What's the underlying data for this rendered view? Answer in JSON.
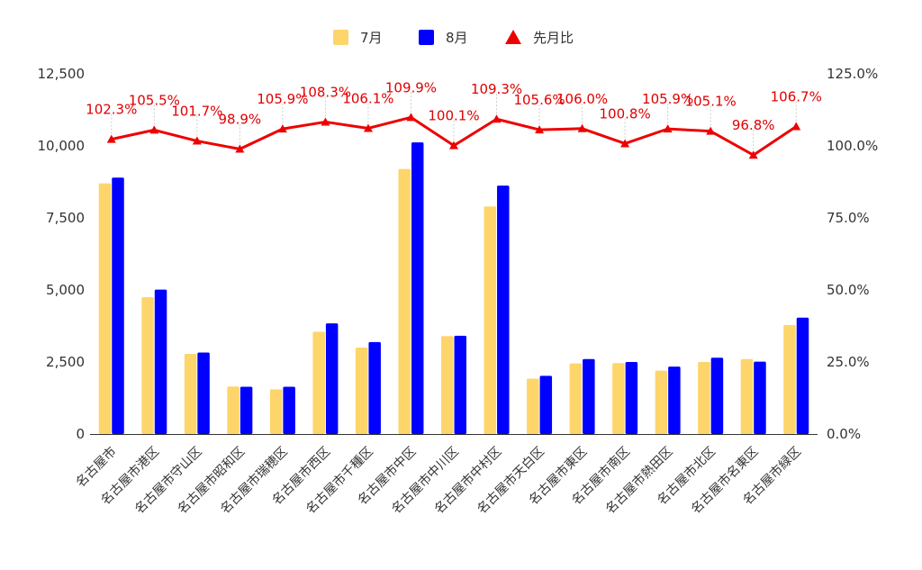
{
  "colors": {
    "jul": "#fdd56b",
    "aug": "#0000ff",
    "ratio": "#ee0000",
    "grid": "#cccccc",
    "axis": "#333333",
    "text": "#333333",
    "background": "#ffffff"
  },
  "legend": {
    "items": [
      {
        "name": "7月",
        "marker": "square",
        "color_key": "jul"
      },
      {
        "name": "8月",
        "marker": "square",
        "color_key": "aug"
      },
      {
        "name": "先月比",
        "marker": "triangle",
        "color_key": "ratio"
      }
    ]
  },
  "chart_data": {
    "type": "bar",
    "title": "",
    "xlabel": "",
    "ylabel": "",
    "legend_position": "top",
    "grid": false,
    "categories": [
      "名古屋市",
      "名古屋市港区",
      "名古屋市守山区",
      "名古屋市昭和区",
      "名古屋市瑞穂区",
      "名古屋市西区",
      "名古屋市千種区",
      "名古屋市中区",
      "名古屋市中川区",
      "名古屋市中村区",
      "名古屋市天白区",
      "名古屋市東区",
      "名古屋市南区",
      "名古屋市熱田区",
      "名古屋市北区",
      "名古屋市名東区",
      "名古屋市緑区"
    ],
    "ylim": [
      0,
      12500
    ],
    "yticks": [
      "0",
      "2,500",
      "5,000",
      "7,500",
      "10,000",
      "12,500"
    ],
    "y2lim": [
      0,
      125
    ],
    "y2ticks": [
      "0.0%",
      "25.0%",
      "50.0%",
      "75.0%",
      "100.0%",
      "125.0%"
    ],
    "series": [
      {
        "name": "7月",
        "type": "bar",
        "axis": "left",
        "values": [
          8700,
          4750,
          2780,
          1650,
          1550,
          3550,
          3000,
          9200,
          3400,
          7900,
          1920,
          2450,
          2460,
          2200,
          2500,
          2600,
          3780
        ]
      },
      {
        "name": "8月",
        "type": "bar",
        "axis": "left",
        "values": [
          8900,
          5010,
          2830,
          1640,
          1640,
          3840,
          3190,
          10120,
          3410,
          8620,
          2020,
          2600,
          2500,
          2340,
          2650,
          2510,
          4040
        ]
      },
      {
        "name": "先月比",
        "type": "line",
        "axis": "right",
        "values": [
          102.3,
          105.5,
          101.7,
          98.9,
          105.9,
          108.3,
          106.1,
          109.9,
          100.1,
          109.3,
          105.6,
          106.0,
          100.8,
          105.9,
          105.1,
          96.8,
          106.7
        ],
        "labels": [
          "102.3%",
          "105.5%",
          "101.7%",
          "98.9%",
          "105.9%",
          "108.3%",
          "106.1%",
          "109.9%",
          "100.1%",
          "109.3%",
          "105.6%",
          "106.0%",
          "100.8%",
          "105.9%",
          "105.1%",
          "96.8%",
          "106.7%"
        ]
      }
    ]
  }
}
